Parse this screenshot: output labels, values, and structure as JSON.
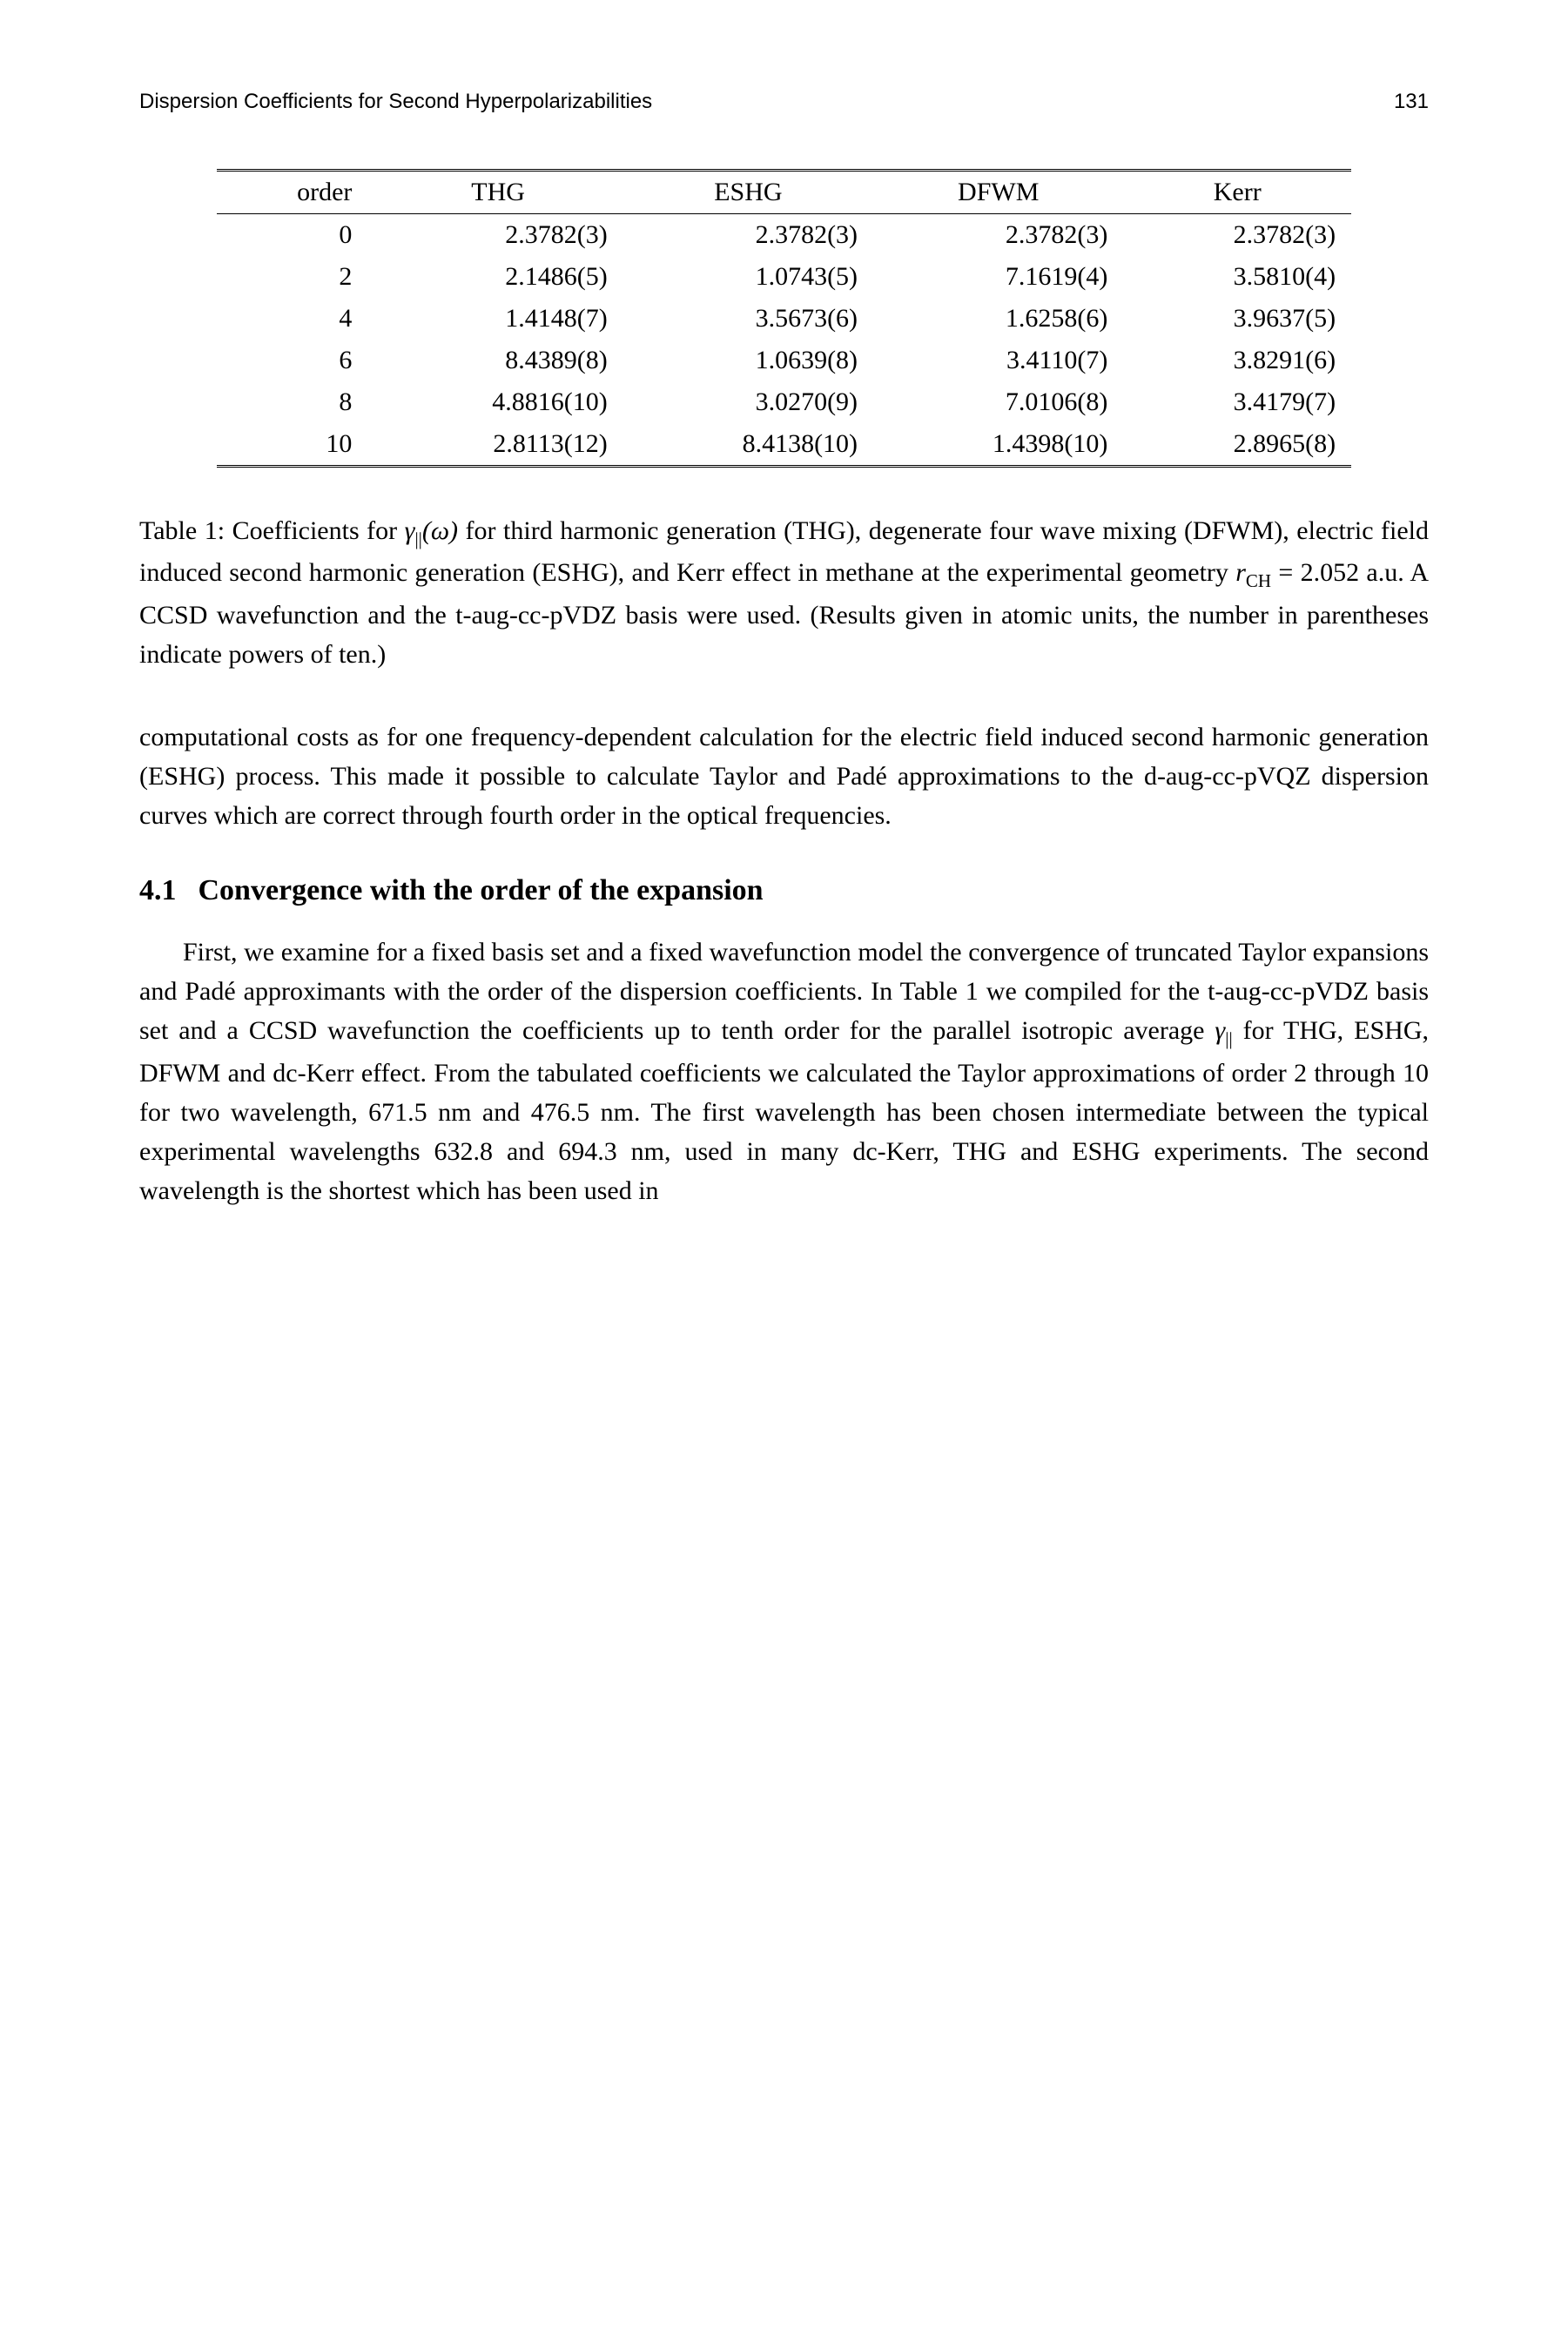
{
  "header": {
    "running_title": "Dispersion Coefficients for Second Hyperpolarizabilities",
    "page_number": "131"
  },
  "table1": {
    "columns": [
      "order",
      "THG",
      "ESHG",
      "DFWM",
      "Kerr"
    ],
    "rows": [
      [
        "0",
        "2.3782(3)",
        "2.3782(3)",
        "2.3782(3)",
        "2.3782(3)"
      ],
      [
        "2",
        "2.1486(5)",
        "1.0743(5)",
        "7.1619(4)",
        "3.5810(4)"
      ],
      [
        "4",
        "1.4148(7)",
        "3.5673(6)",
        "1.6258(6)",
        "3.9637(5)"
      ],
      [
        "6",
        "8.4389(8)",
        "1.0639(8)",
        "3.4110(7)",
        "3.8291(6)"
      ],
      [
        "8",
        "4.8816(10)",
        "3.0270(9)",
        "7.0106(8)",
        "3.4179(7)"
      ],
      [
        "10",
        "2.8113(12)",
        "8.4138(10)",
        "1.4398(10)",
        "2.8965(8)"
      ]
    ]
  },
  "caption": {
    "label": "Table 1:",
    "pre": "Coefficients for ",
    "gamma": "γ",
    "gamma_sub": "||",
    "omega": "(ω)",
    "mid": " for third harmonic generation (THG), degenerate four wave mixing (DFWM), electric field induced second harmonic generation (ESHG), and Kerr effect in methane at the experimental geometry ",
    "r": "r",
    "r_sub": "CH",
    "eq": " = 2.052 a.u. A CCSD wavefunction and the t-aug-cc-pVDZ basis were used. (Results given in atomic units, the number in parentheses indicate powers of ten.)"
  },
  "para1": "computational costs as for one frequency-dependent calculation for the electric field induced second harmonic generation (ESHG) process. This made it possible to calculate Taylor and Padé approximations to the d-aug-cc-pVQZ dispersion curves which are correct through fourth order in the optical frequencies.",
  "section": {
    "num": "4.1",
    "title": "Convergence with the order of the expansion"
  },
  "para2": {
    "a": "First, we examine for a fixed basis set and a fixed wavefunction model the convergence of truncated Taylor expansions and Padé approximants with the order of the dispersion coefficients. In Table 1 we compiled for the t-aug-cc-pVDZ basis set and a CCSD wavefunction the coefficients up to tenth order for the parallel isotropic average ",
    "gamma": "γ",
    "gamma_sub": "||",
    "b": " for THG, ESHG, DFWM and dc-Kerr effect. From the tabulated coefficients we calculated the Taylor approximations of order 2 through 10 for two wavelength, 671.5 nm and 476.5 nm. The first wavelength has been chosen intermediate between the typical experimental wavelengths 632.8 and 694.3 nm, used in many dc-Kerr, THG and ESHG experiments. The second wavelength is the shortest which has been used in"
  }
}
